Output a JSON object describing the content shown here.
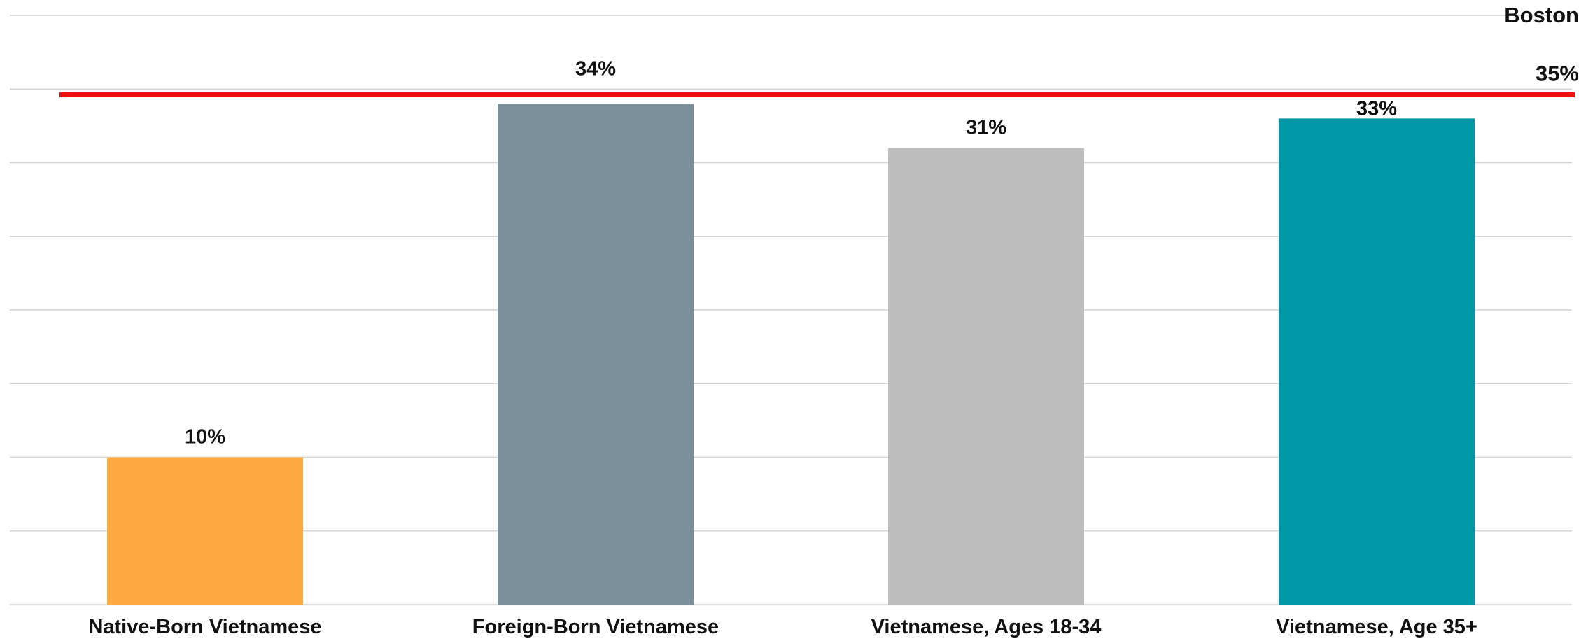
{
  "chart_data": {
    "type": "bar",
    "title": "",
    "xlabel": "",
    "ylabel": "",
    "ylim": [
      0,
      40
    ],
    "grid": true,
    "categories": [
      "Native-Born Vietnamese",
      "Foreign-Born Vietnamese",
      "Vietnamese, Ages 18-34",
      "Vietnamese, Age 35+"
    ],
    "values": [
      10,
      34,
      31,
      33
    ],
    "data_labels": [
      "10%",
      "34%",
      "31%",
      "33%"
    ],
    "bar_colors": [
      "#FDAA43",
      "#798F99",
      "#BEBEBE",
      "#0098A6"
    ],
    "reference_line": {
      "name": "Boston",
      "value": 35,
      "label": "35%",
      "color": "#EE1111"
    }
  }
}
